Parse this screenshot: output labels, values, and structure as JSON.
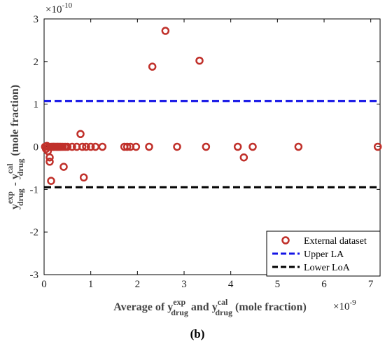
{
  "chart_data": {
    "type": "scatter",
    "title": "",
    "x_multiplier_label": "×10",
    "x_multiplier_exp": "-9",
    "y_multiplier_label": "×10",
    "y_multiplier_exp": "-10",
    "xlabel": {
      "prefix": "Average of y",
      "sub1": "drug",
      "sup1": "exp",
      "middle": " and y",
      "sub2": "drug",
      "sup2": "cal",
      "suffix": " (mole fraction)"
    },
    "ylabel": {
      "base1": "y",
      "sub1": "drug",
      "sup1": "exp",
      "middle": " - y",
      "sub2": "drug",
      "sup2": "cal",
      "suffix": " (mole fraction)"
    },
    "xlim": [
      0,
      7.2
    ],
    "ylim": [
      -3,
      3
    ],
    "x_ticks": [
      0,
      1,
      2,
      3,
      4,
      5,
      6,
      7
    ],
    "x_tick_labels": [
      "0",
      "1",
      "2",
      "3",
      "4",
      "5",
      "6",
      "7"
    ],
    "y_ticks": [
      -3,
      -2,
      -1,
      0,
      1,
      2,
      3
    ],
    "y_tick_labels": [
      "-3",
      "-2",
      "-1",
      "0",
      "1",
      "2",
      "3"
    ],
    "legend_position": "bottom-right",
    "series": [
      {
        "name": "External dataset",
        "marker": "circle-open",
        "color": "#c0302a",
        "points": [
          [
            0.02,
            0.0
          ],
          [
            0.04,
            -0.05
          ],
          [
            0.06,
            0.02
          ],
          [
            0.08,
            -0.1
          ],
          [
            0.1,
            0.0
          ],
          [
            0.12,
            -0.35
          ],
          [
            0.12,
            -0.25
          ],
          [
            0.15,
            -0.8
          ],
          [
            0.15,
            0.0
          ],
          [
            0.18,
            0.0
          ],
          [
            0.2,
            0.0
          ],
          [
            0.22,
            0.0
          ],
          [
            0.25,
            0.0
          ],
          [
            0.28,
            0.0
          ],
          [
            0.3,
            0.0
          ],
          [
            0.33,
            0.0
          ],
          [
            0.36,
            0.0
          ],
          [
            0.4,
            0.0
          ],
          [
            0.42,
            -0.47
          ],
          [
            0.45,
            0.0
          ],
          [
            0.5,
            0.0
          ],
          [
            0.6,
            0.0
          ],
          [
            0.7,
            0.0
          ],
          [
            0.78,
            0.3
          ],
          [
            0.82,
            0.0
          ],
          [
            0.85,
            -0.72
          ],
          [
            0.9,
            0.0
          ],
          [
            1.0,
            0.0
          ],
          [
            1.1,
            0.0
          ],
          [
            1.25,
            0.0
          ],
          [
            1.72,
            0.0
          ],
          [
            1.78,
            0.0
          ],
          [
            1.85,
            0.0
          ],
          [
            1.97,
            0.0
          ],
          [
            2.25,
            0.0
          ],
          [
            2.32,
            1.88
          ],
          [
            2.6,
            2.72
          ],
          [
            2.85,
            0.0
          ],
          [
            3.33,
            2.02
          ],
          [
            3.47,
            0.0
          ],
          [
            4.15,
            0.0
          ],
          [
            4.28,
            -0.25
          ],
          [
            4.47,
            0.0
          ],
          [
            5.45,
            0.0
          ],
          [
            7.15,
            0.0
          ]
        ]
      },
      {
        "name": "Upper LA",
        "type": "hline",
        "y": 1.07,
        "color": "#1414e6",
        "dash": "dashed"
      },
      {
        "name": "Lower LoA",
        "type": "hline",
        "y": -0.95,
        "color": "#000000",
        "dash": "dashed"
      }
    ],
    "panel_label": "(b)"
  }
}
